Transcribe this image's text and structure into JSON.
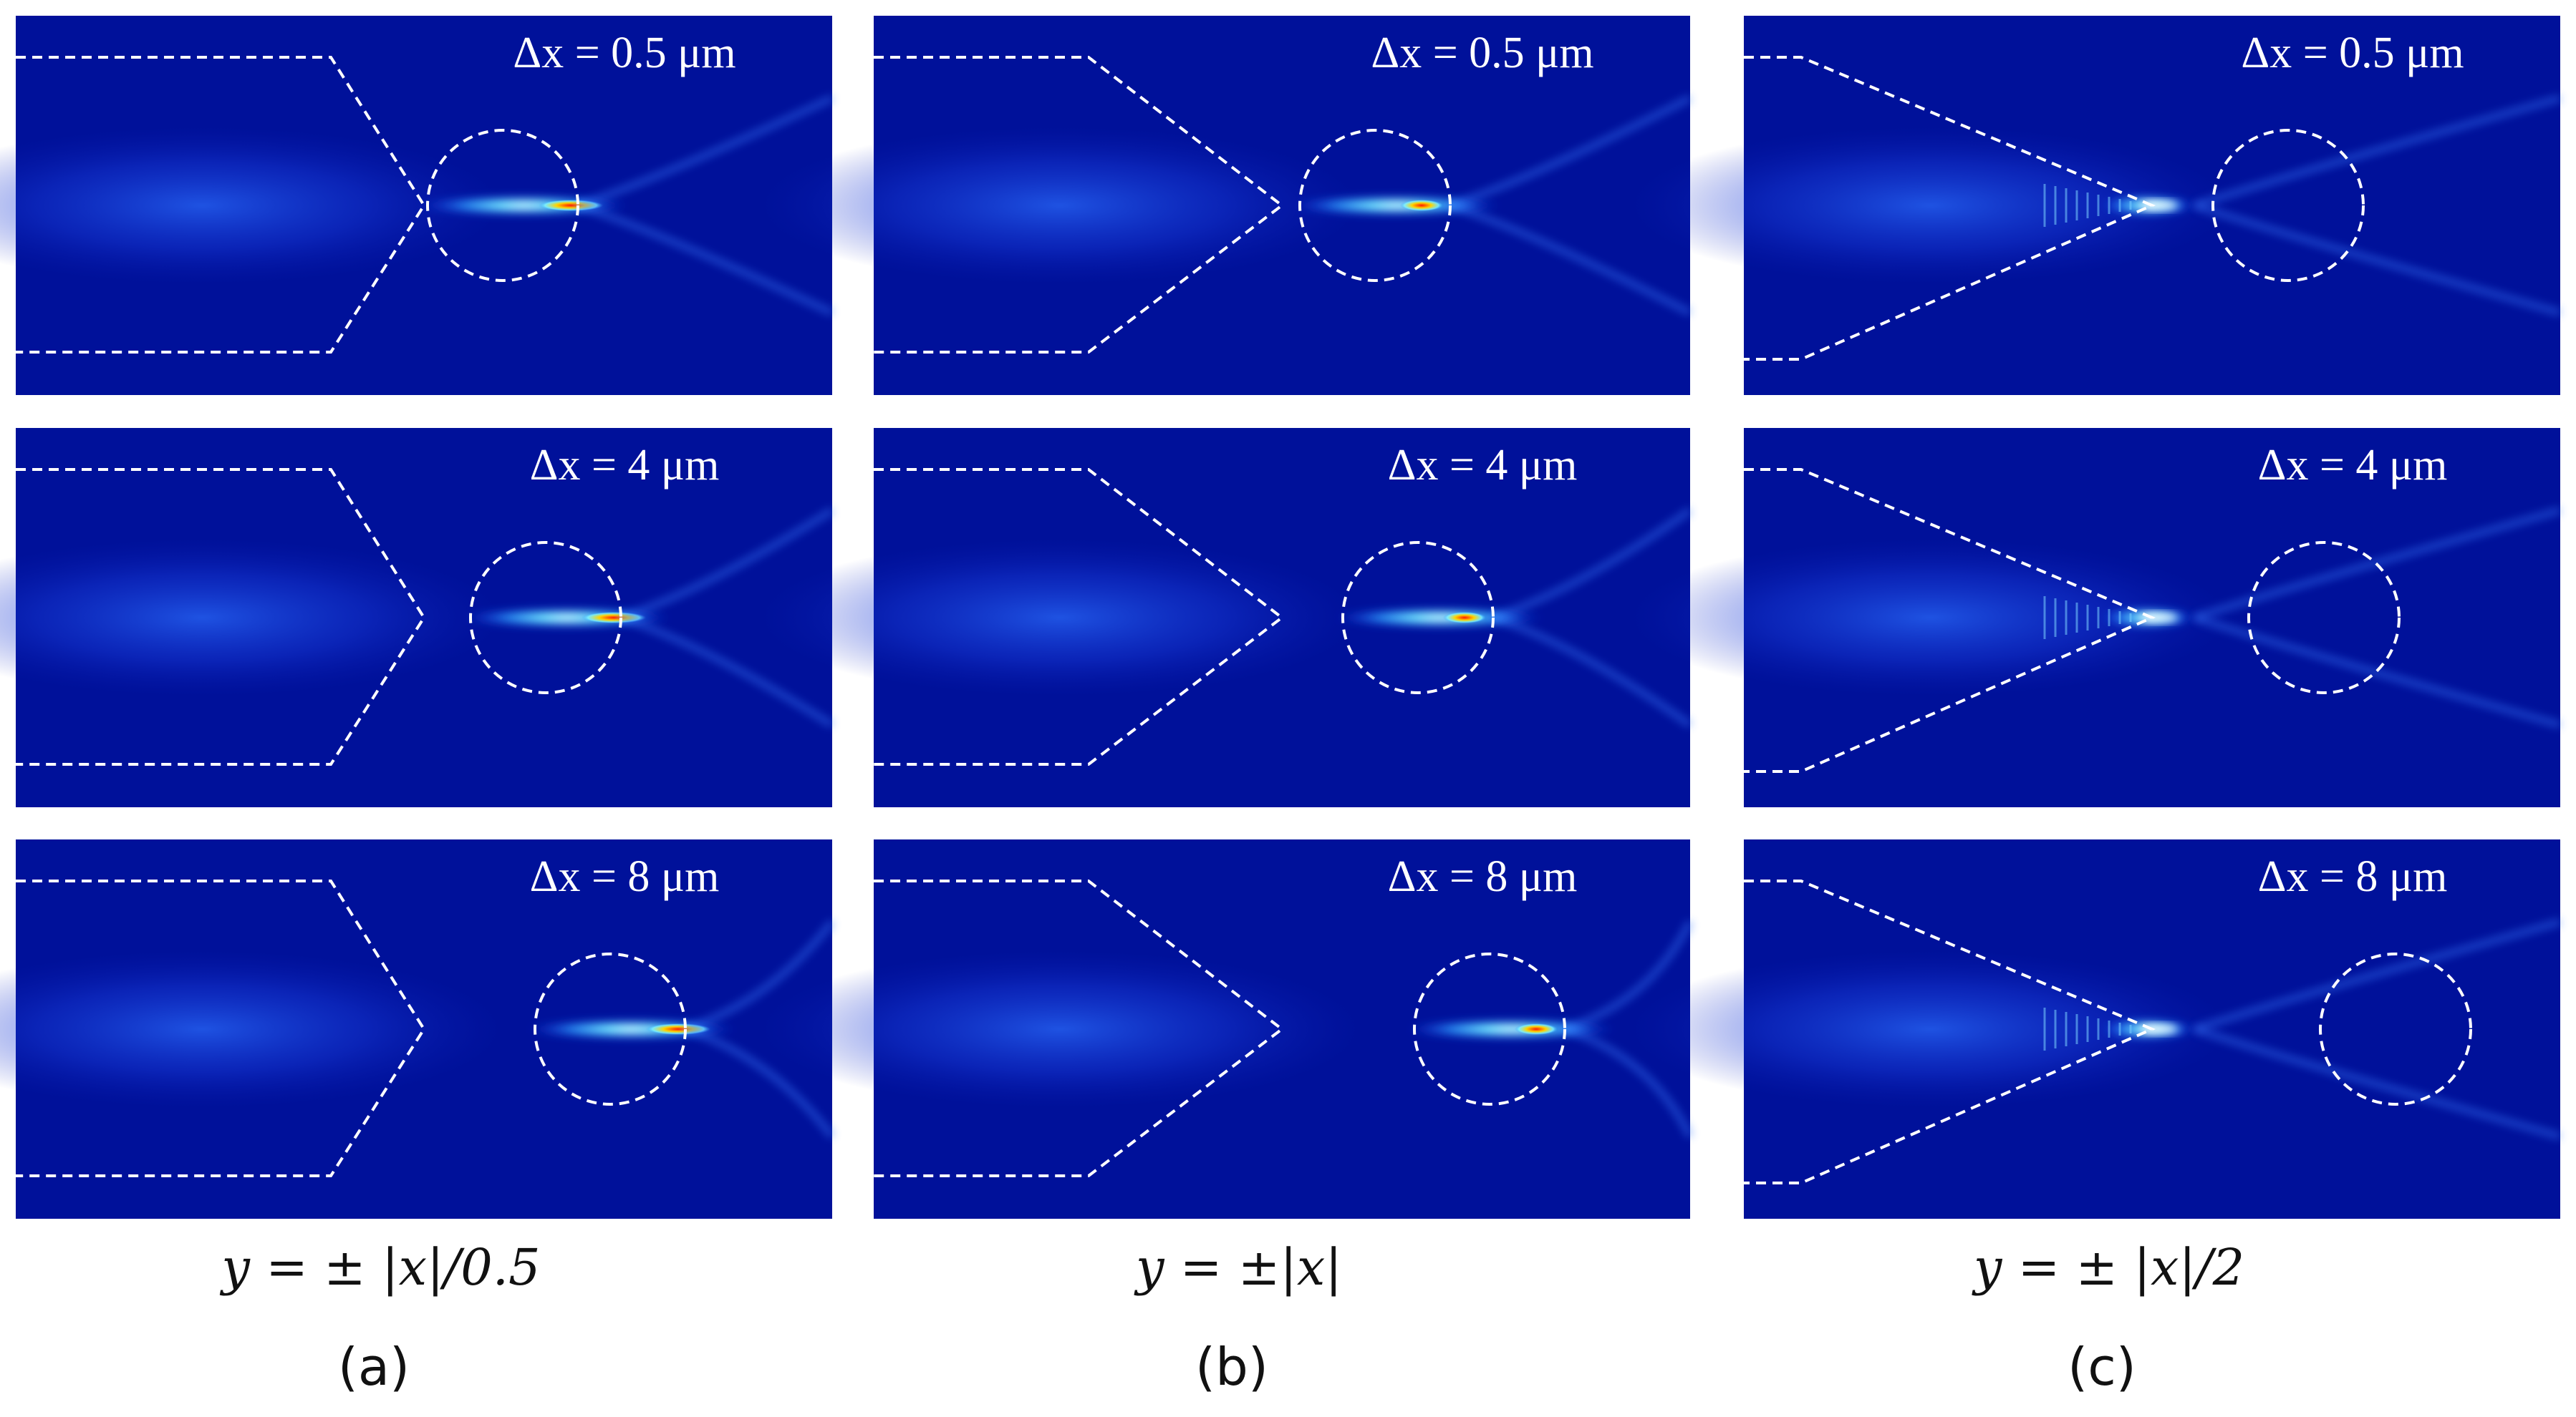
{
  "figure": {
    "columns": [
      {
        "id": "a",
        "formula": "y = ± |x|/0.5",
        "tag": "(a)",
        "rows": [
          {
            "label": "Δx = 0.5 μm"
          },
          {
            "label": "Δx = 4 μm"
          },
          {
            "label": "Δx = 8 μm"
          }
        ]
      },
      {
        "id": "b",
        "formula": "y = ±|x|",
        "tag": "(b)",
        "rows": [
          {
            "label": "Δx = 0.5 μm"
          },
          {
            "label": "Δx = 4 μm"
          },
          {
            "label": "Δx = 8 μm"
          }
        ]
      },
      {
        "id": "c",
        "formula": "y = ± |x|/2",
        "tag": "(c)",
        "rows": [
          {
            "label": "Δx = 0.5 μm"
          },
          {
            "label": "Δx = 4 μm"
          },
          {
            "label": "Δx = 8 μm"
          }
        ]
      }
    ],
    "colors": {
      "field_background": "#00119a",
      "outline": "#ffffff",
      "hotspot": "#ff2a00"
    }
  }
}
